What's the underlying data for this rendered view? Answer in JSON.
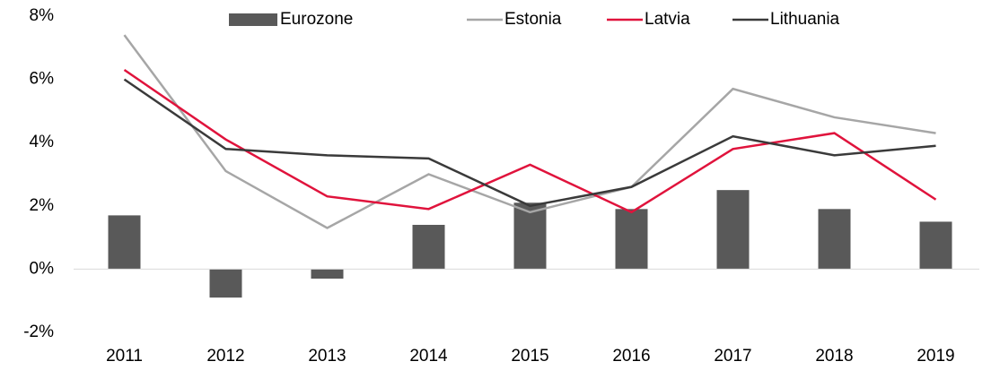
{
  "chart_data": {
    "type": "bar-line",
    "categories": [
      "2011",
      "2012",
      "2013",
      "2014",
      "2015",
      "2016",
      "2017",
      "2018",
      "2019"
    ],
    "series": [
      {
        "name": "Eurozone",
        "type": "bar",
        "color": "#595959",
        "values": [
          1.7,
          -0.9,
          -0.3,
          1.4,
          2.1,
          1.9,
          2.5,
          1.9,
          1.5
        ]
      },
      {
        "name": "Estonia",
        "type": "line",
        "color": "#a6a6a6",
        "values": [
          7.4,
          3.1,
          1.3,
          3.0,
          1.8,
          2.6,
          5.7,
          4.8,
          4.3
        ]
      },
      {
        "name": "Latvia",
        "type": "line",
        "color": "#e0133c",
        "values": [
          6.3,
          4.1,
          2.3,
          1.9,
          3.3,
          1.8,
          3.8,
          4.3,
          2.2
        ]
      },
      {
        "name": "Lithuania",
        "type": "line",
        "color": "#3a3a3a",
        "values": [
          6.0,
          3.8,
          3.6,
          3.5,
          2.0,
          2.6,
          4.2,
          3.6,
          3.9
        ]
      }
    ],
    "ylim": [
      -2,
      8
    ],
    "yticks": [
      {
        "value": -2,
        "label": "-2%"
      },
      {
        "value": 0,
        "label": "0%"
      },
      {
        "value": 2,
        "label": "2%"
      },
      {
        "value": 4,
        "label": "4%"
      },
      {
        "value": 6,
        "label": "6%"
      },
      {
        "value": 8,
        "label": "8%"
      }
    ],
    "grid": false,
    "legend": "top"
  }
}
